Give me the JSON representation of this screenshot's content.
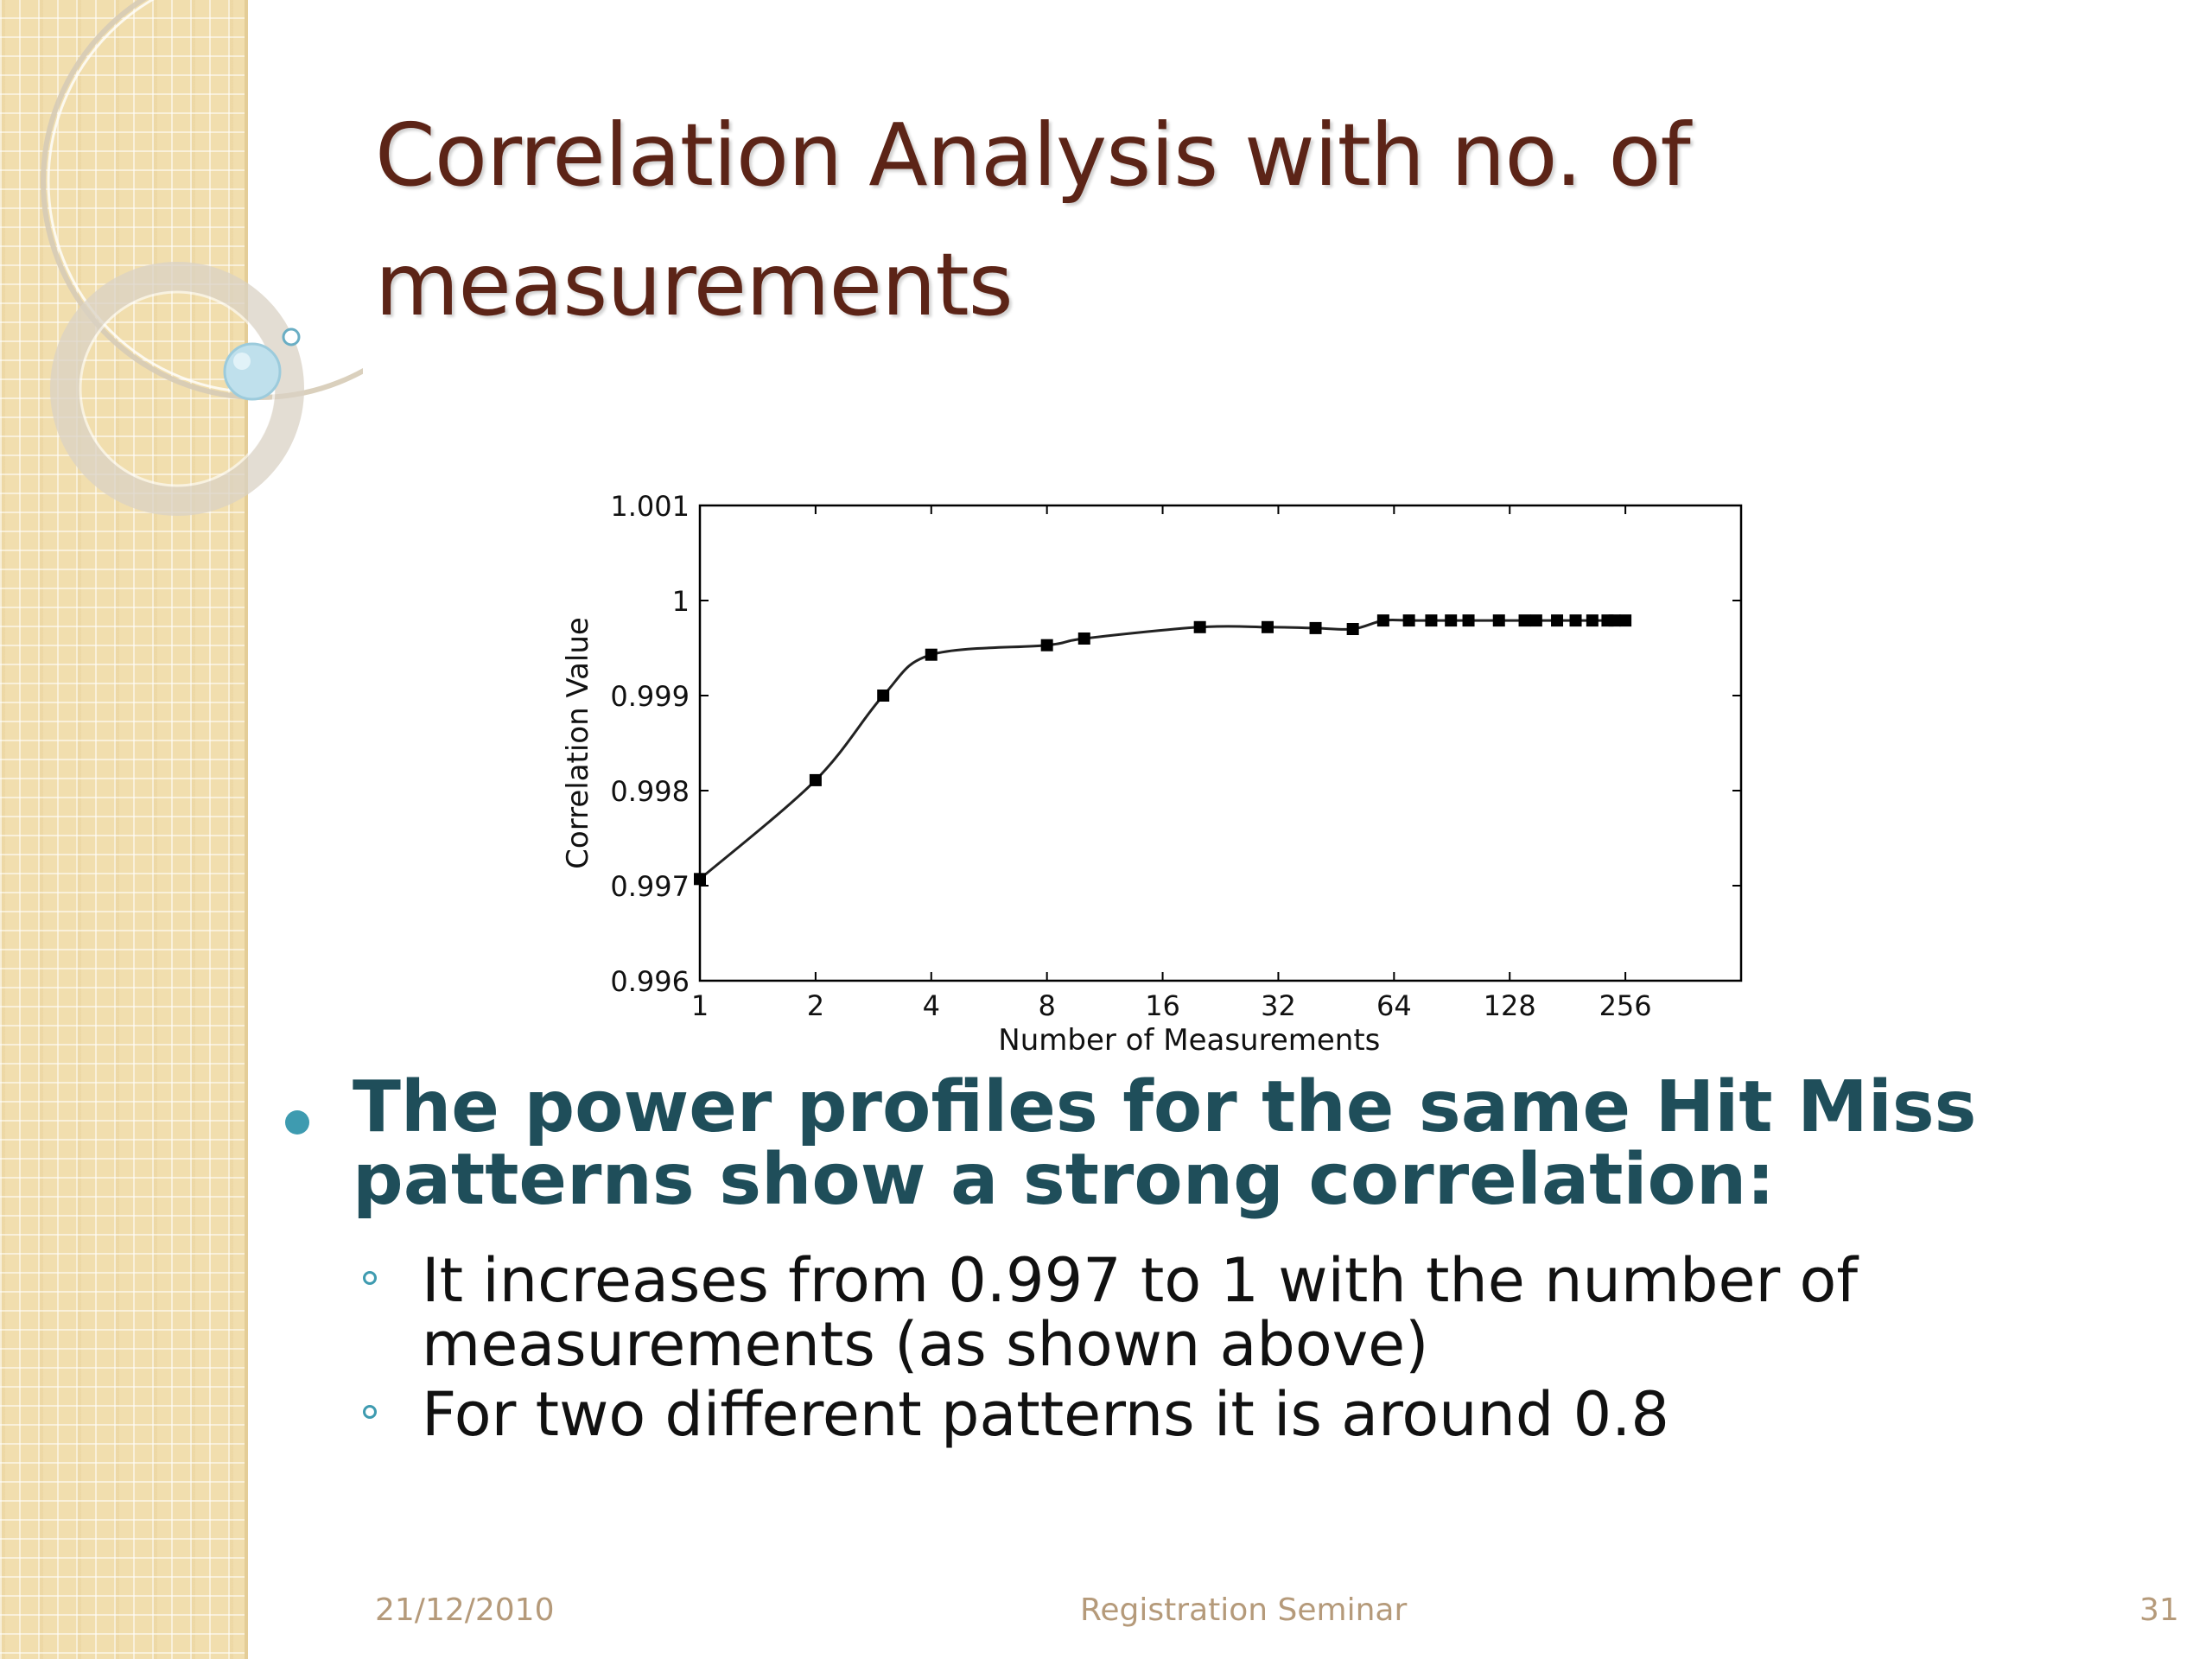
{
  "slide": {
    "title": "Correlation Analysis with no. of measurements",
    "bullet": "The power profiles for the same Hit Miss patterns show a strong correlation:",
    "sub_bullets": [
      "It increases from 0.997 to 1 with the number of measurements (as shown above)",
      "For two different patterns it is around 0.8"
    ],
    "footer": {
      "date": "21/12/2010",
      "center": "Registration Seminar",
      "page": "31"
    }
  },
  "colors": {
    "title": "#5c2417",
    "bullet_text": "#1f4e5a",
    "accent": "#3e9bb0",
    "footer": "#b59a7a"
  },
  "chart_data": {
    "type": "line",
    "xlabel": "Number of Measurements",
    "ylabel": "Correlation Value",
    "x_scale": "log2",
    "xlim": [
      1,
      512
    ],
    "ylim": [
      0.996,
      1.001
    ],
    "x_ticks": [
      1,
      2,
      4,
      8,
      16,
      32,
      64,
      128,
      256
    ],
    "x_tick_labels": [
      "1",
      "2",
      "4",
      "8",
      "16",
      "32",
      "64",
      "128",
      "256"
    ],
    "y_ticks": [
      0.996,
      0.997,
      0.998,
      0.999,
      1,
      1.001
    ],
    "y_tick_labels": [
      "0.996",
      "0.997",
      "0.998",
      "0.999",
      "1",
      "1.001"
    ],
    "series": [
      {
        "x": [
          1,
          2,
          3,
          4,
          8,
          10,
          20,
          30,
          40,
          50,
          60,
          70,
          80,
          90,
          100,
          120,
          140,
          150,
          170,
          190,
          210,
          230,
          240,
          256
        ],
        "values": [
          0.99707,
          0.99811,
          0.999,
          0.99943,
          0.99953,
          0.9996,
          0.99972,
          0.99972,
          0.99971,
          0.9997,
          0.99979,
          0.99979,
          0.99979,
          0.99979,
          0.99979,
          0.99979,
          0.99979,
          0.99979,
          0.99979,
          0.99979,
          0.99979,
          0.99979,
          0.99979,
          0.99979
        ]
      }
    ],
    "legend": "none",
    "grid": false
  }
}
